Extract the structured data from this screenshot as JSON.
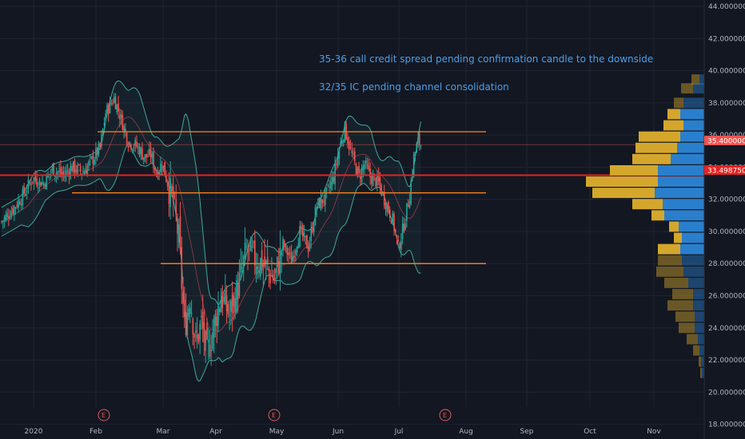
{
  "chart_data": {
    "type": "candlestick",
    "x_axis_labels": [
      "2020",
      "Feb",
      "Mar",
      "Apr",
      "May",
      "Jun",
      "Jul",
      "Aug",
      "Sep",
      "Oct",
      "Nov"
    ],
    "y_axis_labels": [
      "44.00000000",
      "42.00000000",
      "40.00000000",
      "38.00000000",
      "36.00000000",
      "34.00000000",
      "32.00000000",
      "30.00000000",
      "28.00000000",
      "26.00000000",
      "24.00000000",
      "22.00000000",
      "20.00000000",
      "18.00000000"
    ],
    "ylim": [
      17.4,
      44.4
    ],
    "annotations": [
      "35-36 call credit spread pending confirmation candle to the downside",
      "32/35 IC pending channel consolidation"
    ],
    "current_price_tag": "35.40000000",
    "poc_price_tag": "33.49875000",
    "horizontal_levels": [
      36.2,
      32.4,
      28.0
    ],
    "poc_level": 33.5,
    "current_price": 35.4,
    "earnings_marker": "E",
    "colors": {
      "background": "#131722",
      "up_candle": "#26a69a",
      "down_candle": "#ef5350",
      "level_line": "#f57c1f",
      "poc_line": "#e52222",
      "bollinger": "#3fa89a",
      "volume_up": "#2a7fcc",
      "volume_down": "#d4a72c",
      "annotation_text": "#4a9fe8"
    },
    "close_path": [
      [
        0,
        30.6
      ],
      [
        8,
        31.4
      ],
      [
        14,
        32.1
      ],
      [
        22,
        33.3
      ],
      [
        30,
        33.0
      ],
      [
        36,
        33.9
      ],
      [
        44,
        33.5
      ],
      [
        50,
        34.0
      ],
      [
        58,
        33.7
      ],
      [
        64,
        34.4
      ],
      [
        70,
        35.2
      ],
      [
        74,
        37.4
      ],
      [
        80,
        38.3
      ],
      [
        85,
        37.0
      ],
      [
        90,
        35.6
      ],
      [
        96,
        35.3
      ],
      [
        102,
        34.6
      ],
      [
        106,
        34.8
      ],
      [
        110,
        33.6
      ],
      [
        114,
        34.3
      ],
      [
        118,
        33.0
      ],
      [
        122,
        31.8
      ],
      [
        126,
        29.5
      ],
      [
        130,
        24.0
      ],
      [
        134,
        26.0
      ],
      [
        138,
        23.0
      ],
      [
        142,
        24.3
      ],
      [
        146,
        22.3
      ],
      [
        150,
        23.8
      ],
      [
        156,
        26.0
      ],
      [
        162,
        24.8
      ],
      [
        168,
        26.5
      ],
      [
        174,
        28.8
      ],
      [
        180,
        28.3
      ],
      [
        186,
        28.0
      ],
      [
        194,
        27.0
      ],
      [
        200,
        29.2
      ],
      [
        206,
        28.2
      ],
      [
        212,
        30.0
      ],
      [
        218,
        29.0
      ],
      [
        224,
        31.6
      ],
      [
        230,
        32.1
      ],
      [
        236,
        33.4
      ],
      [
        240,
        35.2
      ],
      [
        244,
        36.4
      ],
      [
        248,
        35.0
      ],
      [
        254,
        33.4
      ],
      [
        258,
        34.2
      ],
      [
        262,
        33.4
      ],
      [
        268,
        33.0
      ],
      [
        272,
        32.0
      ],
      [
        278,
        30.7
      ],
      [
        282,
        29.0
      ],
      [
        286,
        30.4
      ],
      [
        290,
        32.3
      ],
      [
        293,
        34.6
      ],
      [
        296,
        35.6
      ],
      [
        298,
        35.4
      ]
    ],
    "volume_profile": [
      {
        "price": 39.45,
        "up": 6,
        "down": 10
      },
      {
        "price": 38.9,
        "up": 14,
        "down": 15
      },
      {
        "price": 38.0,
        "up": 26,
        "down": 12
      },
      {
        "price": 37.3,
        "up": 30,
        "down": 16
      },
      {
        "price": 36.6,
        "up": 26,
        "down": 25
      },
      {
        "price": 35.9,
        "up": 30,
        "down": 52
      },
      {
        "price": 35.2,
        "up": 34,
        "down": 52
      },
      {
        "price": 34.5,
        "up": 42,
        "down": 48
      },
      {
        "price": 33.8,
        "up": 58,
        "down": 60
      },
      {
        "price": 33.1,
        "up": 58,
        "down": 90
      },
      {
        "price": 32.4,
        "up": 62,
        "down": 78
      },
      {
        "price": 31.7,
        "up": 52,
        "down": 38
      },
      {
        "price": 31.0,
        "up": 50,
        "down": 16
      },
      {
        "price": 30.3,
        "up": 32,
        "down": 12
      },
      {
        "price": 29.6,
        "up": 28,
        "down": 10
      },
      {
        "price": 28.9,
        "up": 30,
        "down": 28
      },
      {
        "price": 28.2,
        "up": 28,
        "down": 30
      },
      {
        "price": 27.5,
        "up": 26,
        "down": 34
      },
      {
        "price": 26.8,
        "up": 20,
        "down": 30
      },
      {
        "price": 26.1,
        "up": 14,
        "down": 26
      },
      {
        "price": 25.4,
        "up": 14,
        "down": 32
      },
      {
        "price": 24.7,
        "up": 12,
        "down": 24
      },
      {
        "price": 24.0,
        "up": 12,
        "down": 20
      },
      {
        "price": 23.3,
        "up": 8,
        "down": 14
      },
      {
        "price": 22.6,
        "up": 6,
        "down": 8
      },
      {
        "price": 21.9,
        "up": 4,
        "down": 3
      },
      {
        "price": 21.2,
        "up": 3,
        "down": 2
      }
    ]
  }
}
